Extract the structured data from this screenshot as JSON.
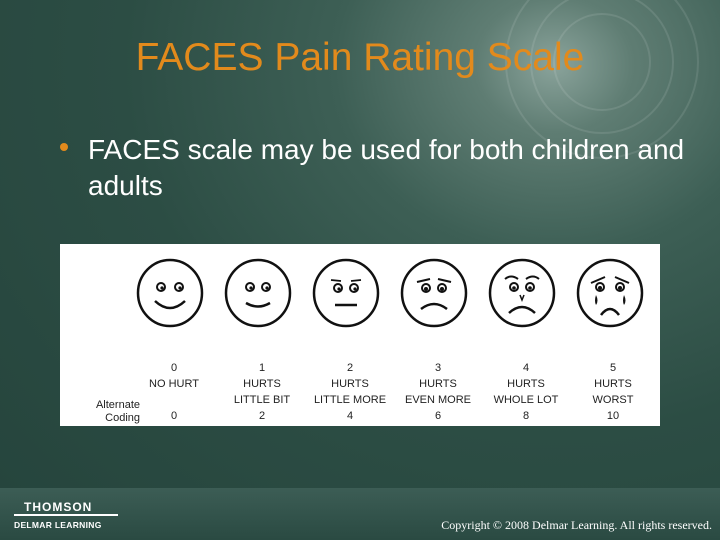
{
  "slide": {
    "title": "FACES Pain Rating Scale",
    "bullet": "FACES scale may be used for both children and adults"
  },
  "scale": {
    "alt_label_line1": "Alternate",
    "alt_label_line2": "Coding",
    "items": [
      {
        "rating": "0",
        "line1": "NO HURT",
        "line2": "",
        "code": "0"
      },
      {
        "rating": "1",
        "line1": "HURTS",
        "line2": "LITTLE BIT",
        "code": "2"
      },
      {
        "rating": "2",
        "line1": "HURTS",
        "line2": "LITTLE MORE",
        "code": "4"
      },
      {
        "rating": "3",
        "line1": "HURTS",
        "line2": "EVEN MORE",
        "code": "6"
      },
      {
        "rating": "4",
        "line1": "HURTS",
        "line2": "WHOLE LOT",
        "code": "8"
      },
      {
        "rating": "5",
        "line1": "HURTS",
        "line2": "WORST",
        "code": "10"
      }
    ]
  },
  "footer": {
    "logo_line1": "THOMSON",
    "logo_line2": "DELMAR LEARNING",
    "copyright": "Copyright © 2008 Delmar Learning. All rights reserved."
  }
}
